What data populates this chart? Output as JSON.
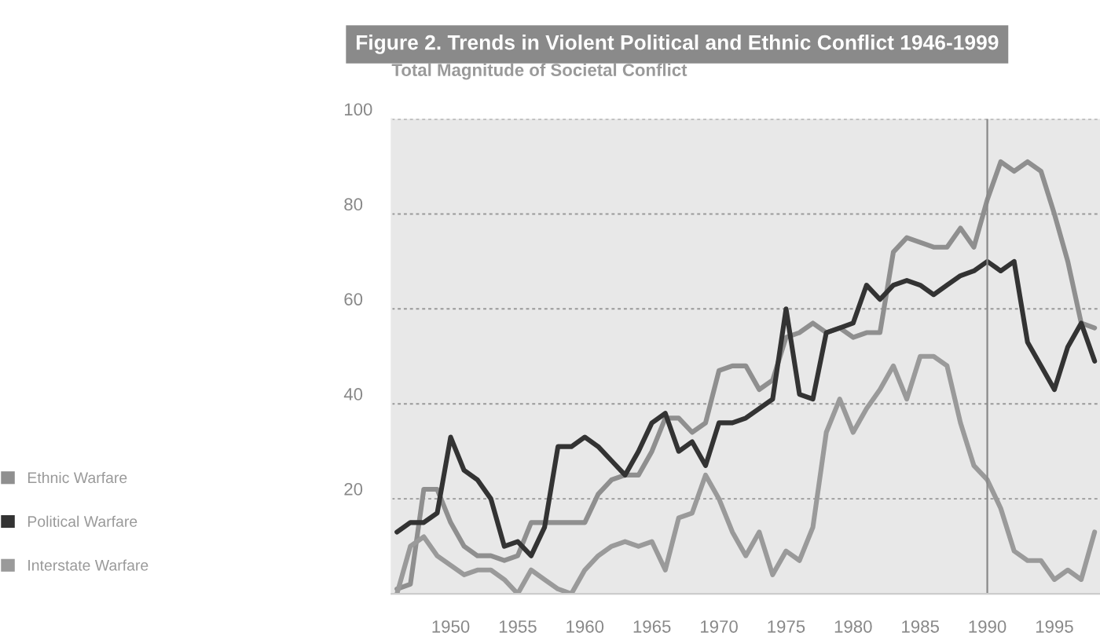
{
  "chart_data": {
    "type": "line",
    "title": "Figure 2. Trends in Violent Political and Ethnic Conflict 1946-1999",
    "ylabel": "Total Magnitude of Societal Conflict",
    "x": [
      1946,
      1947,
      1948,
      1949,
      1950,
      1951,
      1952,
      1953,
      1954,
      1955,
      1956,
      1957,
      1958,
      1959,
      1960,
      1961,
      1962,
      1963,
      1964,
      1965,
      1966,
      1967,
      1968,
      1969,
      1970,
      1971,
      1972,
      1973,
      1974,
      1975,
      1976,
      1977,
      1978,
      1979,
      1980,
      1981,
      1982,
      1983,
      1984,
      1985,
      1986,
      1987,
      1988,
      1989,
      1990,
      1991,
      1992,
      1993,
      1994,
      1995,
      1996,
      1997,
      1998
    ],
    "series": [
      {
        "name": "Ethnic Warfare",
        "color": "#8f8f8f",
        "values": [
          1,
          2,
          22,
          22,
          15,
          10,
          8,
          8,
          7,
          8,
          15,
          15,
          15,
          15,
          15,
          21,
          24,
          25,
          25,
          30,
          37,
          37,
          34,
          36,
          47,
          48,
          48,
          43,
          45,
          54,
          55,
          57,
          55,
          56,
          54,
          55,
          55,
          72,
          75,
          74,
          73,
          73,
          77,
          73,
          83,
          91,
          89,
          91,
          89,
          80,
          70,
          57,
          56
        ]
      },
      {
        "name": "Political Warfare",
        "color": "#333333",
        "values": [
          13,
          15,
          15,
          17,
          33,
          26,
          24,
          20,
          10,
          11,
          8,
          14,
          31,
          31,
          33,
          31,
          28,
          25,
          30,
          36,
          38,
          30,
          32,
          27,
          36,
          36,
          37,
          39,
          41,
          60,
          42,
          41,
          55,
          56,
          57,
          65,
          62,
          65,
          66,
          65,
          63,
          65,
          67,
          68,
          70,
          68,
          70,
          53,
          48,
          43,
          52,
          57,
          49
        ]
      },
      {
        "name": "Interstate Warfare",
        "color": "#9a9a9a",
        "values": [
          0,
          10,
          12,
          8,
          6,
          4,
          5,
          5,
          3,
          0,
          5,
          3,
          1,
          0,
          5,
          8,
          10,
          11,
          10,
          11,
          5,
          16,
          17,
          25,
          20,
          13,
          8,
          13,
          4,
          9,
          7,
          14,
          34,
          41,
          34,
          39,
          43,
          48,
          41,
          50,
          50,
          48,
          36,
          27,
          24,
          18,
          9,
          7,
          7,
          3,
          5,
          3,
          13
        ]
      }
    ],
    "xlim": [
      1945.6,
      1998.4
    ],
    "xticks": [
      1950,
      1955,
      1960,
      1965,
      1970,
      1975,
      1980,
      1985,
      1990,
      1995
    ],
    "ylim": [
      0,
      100
    ],
    "yticks": [
      20,
      40,
      60,
      80,
      100
    ],
    "ref_lines": [
      {
        "axis": "x",
        "value": 1990,
        "color": "#888888"
      }
    ],
    "grid": "y",
    "legend": "left",
    "line_style": "solid",
    "marker": "none"
  }
}
